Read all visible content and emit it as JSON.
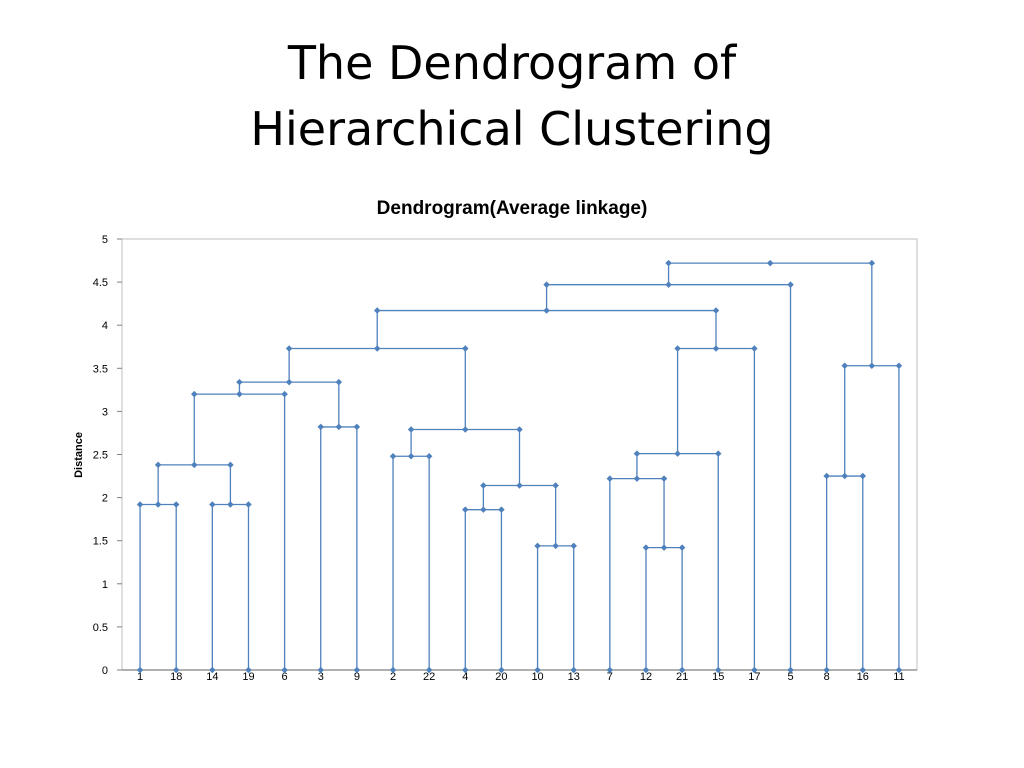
{
  "slide": {
    "title_line1": "The Dendrogram of",
    "title_line2": "Hierarchical Clustering"
  },
  "chart_data": {
    "type": "dendrogram",
    "title": "Dendrogram(Average linkage)",
    "xlabel": "",
    "ylabel": "Distance",
    "ylim": [
      0,
      5
    ],
    "yticks": [
      "0",
      "0.5",
      "1",
      "1.5",
      "2",
      "2.5",
      "3",
      "3.5",
      "4",
      "4.5",
      "5"
    ],
    "grid": false,
    "line_color": "#4F81BD",
    "leaves": [
      "1",
      "18",
      "14",
      "19",
      "6",
      "3",
      "9",
      "2",
      "22",
      "4",
      "20",
      "10",
      "13",
      "7",
      "12",
      "21",
      "15",
      "17",
      "5",
      "8",
      "16",
      "11"
    ],
    "merges": [
      {
        "left": "1",
        "right": "18",
        "height": 1.92
      },
      {
        "left": "14",
        "right": "19",
        "height": 1.92
      },
      {
        "left": "1-18",
        "right": "14-19",
        "height": 2.38
      },
      {
        "left": "1-18-14-19",
        "right": "6",
        "height": 3.2
      },
      {
        "left": "3",
        "right": "9",
        "height": 2.82
      },
      {
        "left": "1-18-14-19-6",
        "right": "3-9",
        "height": 3.34
      },
      {
        "left": "2",
        "right": "22",
        "height": 2.48
      },
      {
        "left": "4",
        "right": "20",
        "height": 1.86
      },
      {
        "left": "10",
        "right": "13",
        "height": 1.44
      },
      {
        "left": "4-20",
        "right": "10-13",
        "height": 2.14
      },
      {
        "left": "2-22",
        "right": "4-20-10-13",
        "height": 2.79
      },
      {
        "left": "1..9",
        "right": "2..13",
        "height": 3.73
      },
      {
        "left": "12",
        "right": "21",
        "height": 1.42
      },
      {
        "left": "7",
        "right": "12-21",
        "height": 2.22
      },
      {
        "left": "7-12-21",
        "right": "15",
        "height": 2.51
      },
      {
        "left": "7-12-21-15",
        "right": "17",
        "height": 3.73
      },
      {
        "left": "1..13",
        "right": "7..17",
        "height": 4.17
      },
      {
        "left": "1..17",
        "right": "5",
        "height": 4.47
      },
      {
        "left": "8",
        "right": "16",
        "height": 2.25
      },
      {
        "left": "8-16",
        "right": "11",
        "height": 3.53
      },
      {
        "left": "1..5",
        "right": "8-16-11",
        "height": 4.72
      }
    ]
  }
}
